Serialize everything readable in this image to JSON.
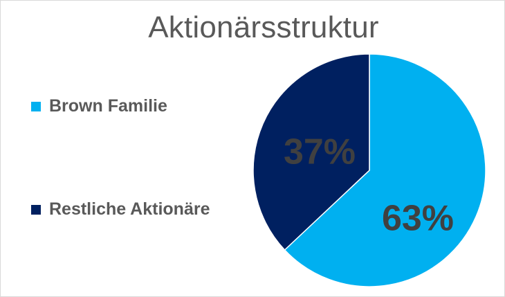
{
  "chart_data": {
    "type": "pie",
    "title": "Aktionärsstruktur",
    "slices": [
      {
        "name": "Brown Familie",
        "value": 63,
        "label": "63%",
        "color": "#00B0F0"
      },
      {
        "name": "Restliche Aktionäre",
        "value": 37,
        "label": "37%",
        "color": "#002060"
      }
    ],
    "start_angle_deg": 0,
    "direction": "clockwise",
    "legend_position": "left"
  }
}
